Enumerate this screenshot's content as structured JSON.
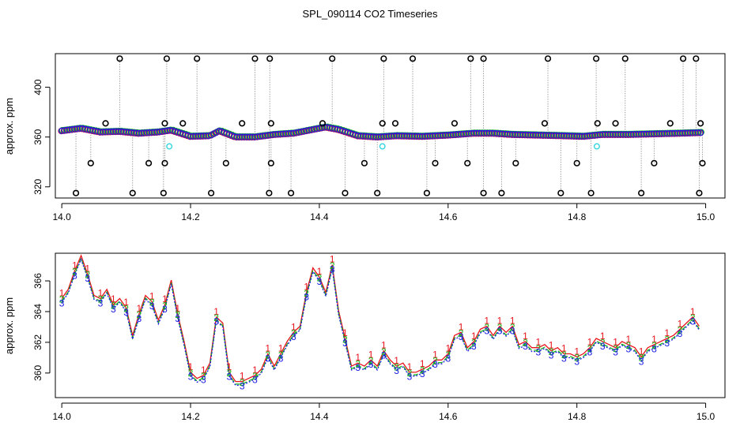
{
  "title": "SPL_090114  CO2 Timeseries",
  "colors": {
    "black": "#000000",
    "red": "#e8141c",
    "green": "#18b418",
    "blue": "#1a1ae6",
    "cyan": "#33d6e0",
    "grey": "#9a9a9a"
  },
  "chart_data": [
    {
      "type": "scatter",
      "name": "top-panel",
      "ylabel": "approx. ppm",
      "xlim": [
        13.99,
        15.03
      ],
      "ylim": [
        311,
        427
      ],
      "xticks": [
        14.0,
        14.2,
        14.4,
        14.6,
        14.8,
        15.0
      ],
      "xtick_labels": [
        "14.0",
        "14.2",
        "14.4",
        "14.6",
        "14.8",
        "15.0"
      ],
      "yticks": [
        320,
        360,
        400
      ],
      "ytick_labels": [
        "320",
        "360",
        "400"
      ],
      "baseline": [
        [
          14.0,
          365
        ],
        [
          14.03,
          367
        ],
        [
          14.06,
          364
        ],
        [
          14.09,
          364.5
        ],
        [
          14.12,
          363
        ],
        [
          14.15,
          364
        ],
        [
          14.17,
          365.5
        ],
        [
          14.2,
          360.5
        ],
        [
          14.23,
          361
        ],
        [
          14.245,
          365
        ],
        [
          14.27,
          360
        ],
        [
          14.3,
          360
        ],
        [
          14.33,
          362
        ],
        [
          14.36,
          363
        ],
        [
          14.39,
          366
        ],
        [
          14.41,
          368
        ],
        [
          14.43,
          366
        ],
        [
          14.46,
          361
        ],
        [
          14.49,
          360
        ],
        [
          14.52,
          361
        ],
        [
          14.56,
          360.5
        ],
        [
          14.6,
          361.5
        ],
        [
          14.64,
          363
        ],
        [
          14.67,
          363
        ],
        [
          14.7,
          362
        ],
        [
          14.74,
          361.5
        ],
        [
          14.78,
          361
        ],
        [
          14.81,
          360.5
        ],
        [
          14.84,
          362
        ],
        [
          14.88,
          362
        ],
        [
          14.92,
          362.5
        ],
        [
          14.96,
          363
        ],
        [
          14.99,
          363.5
        ]
      ],
      "high_outliers": [
        14.09,
        14.163,
        14.21,
        14.3,
        14.323,
        14.42,
        14.5,
        14.545,
        14.635,
        14.655,
        14.755,
        14.83,
        14.875,
        14.965,
        14.985
      ],
      "high_value": 423,
      "low_outliers": [
        14.022,
        14.11,
        14.158,
        14.232,
        14.322,
        14.356,
        14.44,
        14.49,
        14.567,
        14.655,
        14.683,
        14.775,
        14.822,
        14.9,
        14.99
      ],
      "low_value": 315,
      "mid_low_outliers": [
        14.045,
        14.135,
        14.16,
        14.255,
        14.325,
        14.47,
        14.58,
        14.63,
        14.705,
        14.8,
        14.92,
        14.995
      ],
      "mid_low_value": 339,
      "mid_high_outliers": [
        14.068,
        14.16,
        14.188,
        14.28,
        14.325,
        14.405,
        14.498,
        14.518,
        14.61,
        14.75,
        14.832,
        14.86,
        14.945,
        14.992
      ],
      "mid_high_value": 371,
      "cyan_points": [
        [
          14.167,
          352.5
        ],
        [
          14.498,
          352.5
        ],
        [
          14.831,
          352.5
        ]
      ]
    },
    {
      "type": "line",
      "name": "bottom-panel",
      "ylabel": "approx. ppm",
      "xlim": [
        13.99,
        15.03
      ],
      "ylim": [
        358.4,
        367.8
      ],
      "xticks": [
        14.0,
        14.2,
        14.4,
        14.6,
        14.8,
        15.0
      ],
      "xtick_labels": [
        "14.0",
        "14.2",
        "14.4",
        "14.6",
        "14.8",
        "15.0"
      ],
      "yticks": [
        360,
        362,
        364,
        366
      ],
      "ytick_labels": [
        "360",
        "362",
        "364",
        "366"
      ],
      "series": [
        {
          "name": "1",
          "color": "#e8141c"
        },
        {
          "name": "2",
          "color": "#18b418"
        },
        {
          "name": "3",
          "color": "#1a1ae6"
        }
      ],
      "x": [
        14.0,
        14.01,
        14.02,
        14.03,
        14.04,
        14.05,
        14.06,
        14.07,
        14.08,
        14.09,
        14.1,
        14.11,
        14.12,
        14.13,
        14.14,
        14.15,
        14.16,
        14.17,
        14.18,
        14.19,
        14.2,
        14.21,
        14.22,
        14.23,
        14.24,
        14.25,
        14.26,
        14.27,
        14.28,
        14.29,
        14.3,
        14.31,
        14.32,
        14.33,
        14.34,
        14.35,
        14.36,
        14.37,
        14.38,
        14.39,
        14.4,
        14.41,
        14.42,
        14.43,
        14.44,
        14.45,
        14.46,
        14.47,
        14.48,
        14.49,
        14.5,
        14.51,
        14.52,
        14.53,
        14.54,
        14.55,
        14.56,
        14.57,
        14.58,
        14.59,
        14.6,
        14.61,
        14.62,
        14.63,
        14.64,
        14.65,
        14.66,
        14.67,
        14.68,
        14.69,
        14.7,
        14.71,
        14.72,
        14.73,
        14.74,
        14.75,
        14.76,
        14.77,
        14.78,
        14.79,
        14.8,
        14.81,
        14.82,
        14.83,
        14.84,
        14.85,
        14.86,
        14.87,
        14.88,
        14.89,
        14.9,
        14.91,
        14.92,
        14.93,
        14.94,
        14.95,
        14.96,
        14.97,
        14.98,
        14.99
      ],
      "y": [
        364.6,
        365.2,
        366.4,
        367.4,
        366.2,
        364.8,
        364.6,
        365.2,
        364.2,
        364.6,
        364.0,
        362.2,
        363.6,
        364.8,
        364.4,
        363.2,
        364.2,
        365.8,
        363.6,
        361.8,
        359.8,
        359.4,
        359.6,
        360.4,
        363.4,
        363.0,
        359.8,
        359.2,
        359.2,
        359.4,
        359.6,
        360.0,
        361.0,
        360.2,
        361.0,
        361.8,
        362.4,
        362.8,
        365.0,
        366.6,
        366.0,
        365.0,
        366.8,
        363.8,
        362.0,
        360.2,
        360.4,
        360.2,
        360.6,
        360.2,
        361.2,
        360.6,
        360.2,
        360.4,
        359.8,
        359.8,
        360.0,
        360.2,
        360.6,
        360.6,
        361.0,
        362.2,
        362.4,
        361.4,
        361.8,
        362.6,
        362.8,
        362.2,
        362.8,
        362.4,
        362.8,
        361.6,
        361.8,
        361.4,
        361.4,
        361.6,
        361.2,
        361.4,
        361.0,
        361.0,
        360.8,
        361.0,
        361.4,
        362.0,
        361.8,
        361.6,
        361.4,
        361.8,
        361.6,
        361.4,
        360.8,
        361.4,
        361.6,
        361.8,
        362.0,
        362.2,
        362.6,
        363.0,
        363.4,
        362.8
      ]
    }
  ]
}
